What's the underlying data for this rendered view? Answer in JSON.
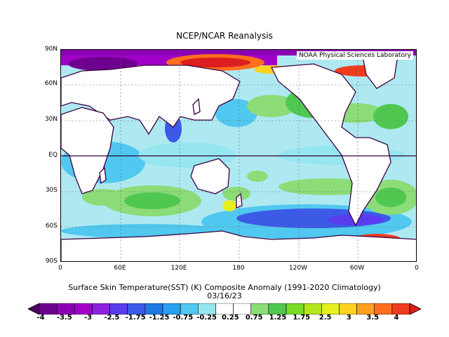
{
  "title": "NCEP/NCAR Reanalysis",
  "credit": "NOAA Physical Sciences Laboratory",
  "caption_line1": "Surface Skin Temperature(SST) (K) Composite Anomaly (1991-2020 Climatology)",
  "caption_line2": "03/16/23",
  "lat_labels": [
    "90N",
    "60N",
    "30N",
    "EQ",
    "30S",
    "60S",
    "90S"
  ],
  "lon_labels": [
    "0",
    "60E",
    "120E",
    "180",
    "120W",
    "60W",
    "0"
  ],
  "colorbar": {
    "ticks": [
      "-4",
      "-3.5",
      "-3",
      "-2.5",
      "-1.75",
      "-1.25",
      "-0.75",
      "-0.25",
      "0.25",
      "0.75",
      "1.25",
      "1.75",
      "2.5",
      "3",
      "3.5",
      "4"
    ],
    "colors": [
      "#4b0061",
      "#6d008e",
      "#8c00b4",
      "#a000c8",
      "#8c22e0",
      "#5a3cf0",
      "#3c5ae6",
      "#1e78e6",
      "#28a0f0",
      "#50c8f0",
      "#96e6f0",
      "#ffffff",
      "#ffffff",
      "#8cdc78",
      "#50c850",
      "#78dc28",
      "#b4e61e",
      "#e6f01e",
      "#ffd21e",
      "#ffa01e",
      "#ff6e1e",
      "#f03c1e",
      "#dc1e1e"
    ]
  }
}
